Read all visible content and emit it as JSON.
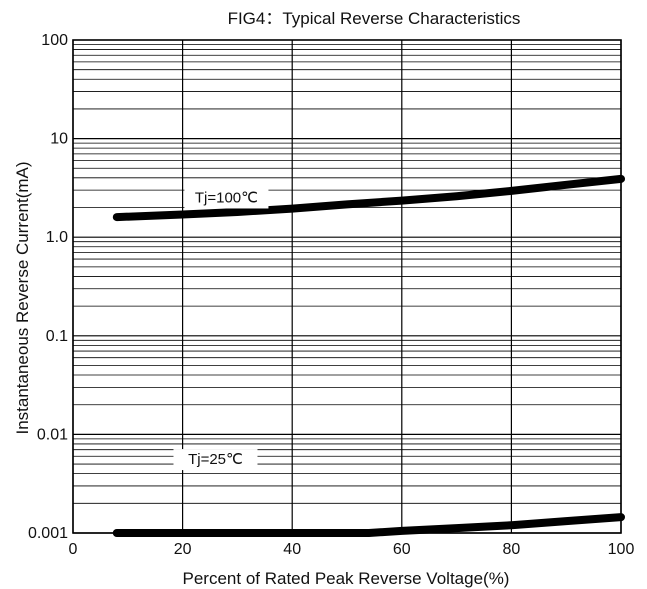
{
  "chart_data": {
    "type": "line",
    "title": "FIG4：Typical Reverse Characteristics",
    "xlabel": "Percent of Rated Peak Reverse Voltage(%)",
    "ylabel": "Instantaneous Reverse Current(mA)",
    "xlim": [
      0,
      100
    ],
    "ylim": [
      0.001,
      100
    ],
    "yscale": "log",
    "grid": true,
    "x_ticks": [
      "0",
      "20",
      "40",
      "60",
      "80",
      "100"
    ],
    "y_ticks": [
      "0.001",
      "0.01",
      "0.1",
      "1.0",
      "10",
      "100"
    ],
    "series": [
      {
        "name": "Tj=100℃",
        "color": "#000000",
        "x": [
          8,
          20,
          30,
          40,
          50,
          60,
          70,
          80,
          90,
          100
        ],
        "y": [
          1.6,
          1.7,
          1.8,
          1.95,
          2.15,
          2.35,
          2.6,
          2.95,
          3.4,
          3.9
        ]
      },
      {
        "name": "Tj=25℃",
        "color": "#000000",
        "x": [
          8,
          20,
          40,
          54,
          60,
          70,
          80,
          90,
          100
        ],
        "y": [
          0.001,
          0.001,
          0.001,
          0.001,
          0.00105,
          0.00112,
          0.0012,
          0.00132,
          0.00145
        ]
      }
    ]
  }
}
